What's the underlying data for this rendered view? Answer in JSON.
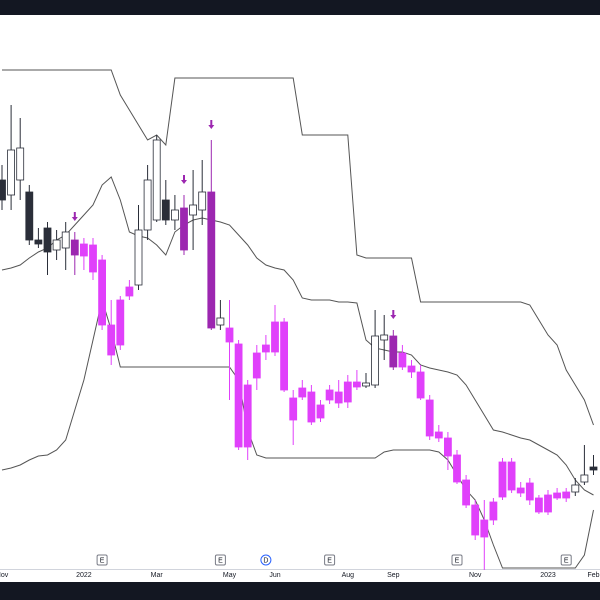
{
  "chart_data": {
    "type": "candlestick",
    "x": [
      "Nov",
      null,
      null,
      null,
      null,
      null,
      null,
      null,
      null,
      "2022",
      null,
      null,
      null,
      null,
      null,
      null,
      null,
      "Mar",
      null,
      null,
      null,
      null,
      null,
      null,
      null,
      "May",
      null,
      null,
      null,
      null,
      "Jun",
      null,
      null,
      null,
      null,
      null,
      null,
      null,
      "Aug",
      null,
      null,
      null,
      null,
      "Sep",
      null,
      null,
      null,
      null,
      null,
      null,
      null,
      null,
      "Nov",
      null,
      null,
      null,
      null,
      null,
      null,
      null,
      "2023",
      null,
      null,
      null,
      null,
      "Feb"
    ],
    "open": [
      390,
      375,
      390,
      378,
      330,
      342,
      320,
      322,
      330,
      326,
      325,
      310,
      245,
      270,
      283,
      285,
      340,
      350,
      370,
      350,
      362,
      355,
      360,
      378,
      245,
      242,
      226,
      185,
      217,
      225,
      248,
      248,
      172,
      182,
      178,
      165,
      180,
      178,
      188,
      188,
      184,
      185,
      230,
      234,
      217,
      204,
      198,
      170,
      138,
      132,
      115,
      90,
      65,
      50,
      68,
      108,
      108,
      82,
      87,
      72,
      75,
      77,
      78,
      78,
      88,
      103
    ],
    "high": [
      405,
      465,
      452,
      385,
      342,
      348,
      340,
      348,
      338,
      332,
      332,
      315,
      270,
      274,
      290,
      365,
      405,
      435,
      390,
      375,
      375,
      400,
      410,
      430,
      270,
      270,
      230,
      190,
      225,
      235,
      265,
      252,
      180,
      190,
      185,
      170,
      185,
      190,
      195,
      200,
      197,
      260,
      255,
      240,
      225,
      210,
      205,
      175,
      145,
      138,
      120,
      95,
      70,
      70,
      72,
      112,
      112,
      88,
      92,
      75,
      80,
      82,
      82,
      92,
      125,
      115
    ],
    "low": [
      360,
      360,
      370,
      325,
      322,
      295,
      310,
      300,
      295,
      300,
      290,
      240,
      205,
      220,
      270,
      280,
      330,
      348,
      345,
      340,
      315,
      320,
      345,
      240,
      240,
      170,
      120,
      110,
      180,
      210,
      214,
      178,
      125,
      170,
      145,
      148,
      166,
      162,
      162,
      180,
      182,
      182,
      210,
      200,
      200,
      192,
      170,
      130,
      128,
      100,
      86,
      62,
      30,
      0,
      45,
      70,
      77,
      73,
      65,
      56,
      55,
      70,
      68,
      74,
      85,
      95
    ],
    "close": [
      370,
      420,
      422,
      330,
      326,
      318,
      330,
      338,
      315,
      314,
      298,
      245,
      215,
      225,
      274,
      340,
      390,
      430,
      350,
      360,
      320,
      365,
      378,
      242,
      252,
      228,
      123,
      123,
      192,
      218,
      218,
      180,
      150,
      173,
      148,
      152,
      170,
      167,
      168,
      183,
      187,
      234,
      235,
      203,
      203,
      198,
      172,
      134,
      132,
      114,
      88,
      65,
      35,
      33,
      50,
      73,
      80,
      77,
      70,
      58,
      58,
      72,
      72,
      85,
      95,
      100
    ],
    "colors": [
      "#2a2e39",
      "#ffffff",
      "#ffffff",
      "#2a2e39",
      "#2a2e39",
      "#2a2e39",
      "#ffffff",
      "#ffffff",
      "#9c27b0",
      "#e040fb",
      "#e040fb",
      "#e040fb",
      "#e040fb",
      "#e040fb",
      "#e040fb",
      "#ffffff",
      "#ffffff",
      "#ffffff",
      "#2a2e39",
      "#ffffff",
      "#9c27b0",
      "#ffffff",
      "#ffffff",
      "#9c27b0",
      "#ffffff",
      "#e040fb",
      "#e040fb",
      "#e040fb",
      "#e040fb",
      "#e040fb",
      "#e040fb",
      "#e040fb",
      "#e040fb",
      "#e040fb",
      "#e040fb",
      "#e040fb",
      "#e040fb",
      "#e040fb",
      "#e040fb",
      "#e040fb",
      "#ffffff",
      "#ffffff",
      "#ffffff",
      "#9c27b0",
      "#e040fb",
      "#e040fb",
      "#e040fb",
      "#e040fb",
      "#e040fb",
      "#e040fb",
      "#e040fb",
      "#e040fb",
      "#e040fb",
      "#e040fb",
      "#e040fb",
      "#e040fb",
      "#e040fb",
      "#e040fb",
      "#e040fb",
      "#e040fb",
      "#e040fb",
      "#e040fb",
      "#e040fb",
      "#ffffff",
      "#ffffff",
      "#2a2e39"
    ],
    "lines": [
      {
        "color": "#555555",
        "values": [
          500,
          500,
          500,
          500,
          500,
          500,
          500,
          500,
          500,
          500,
          500,
          500,
          500,
          475,
          460,
          445,
          430,
          435,
          425,
          492,
          492,
          492,
          492,
          492,
          492,
          492,
          492,
          492,
          492,
          492,
          492,
          492,
          492,
          435,
          435,
          435,
          435,
          435,
          435,
          315,
          312,
          312,
          312,
          312,
          312,
          312,
          268,
          268,
          268,
          268,
          268,
          268,
          268,
          268,
          268,
          268,
          268,
          268,
          265,
          250,
          235,
          225,
          200,
          185,
          170,
          145
        ]
      },
      {
        "color": "#555555",
        "values": [
          300,
          302,
          305,
          312,
          318,
          322,
          330,
          335,
          345,
          355,
          365,
          385,
          393,
          370,
          338,
          334,
          332,
          325,
          315,
          338,
          345,
          350,
          352,
          350,
          348,
          345,
          335,
          325,
          312,
          305,
          302,
          300,
          290,
          272,
          270,
          270,
          270,
          268,
          268,
          267,
          230,
          222,
          220,
          218,
          218,
          215,
          205,
          202,
          200,
          198,
          195,
          185,
          170,
          155,
          140,
          138,
          135,
          132,
          130,
          125,
          120,
          115,
          105,
          90,
          80,
          75
        ]
      },
      {
        "color": "#555555",
        "values": [
          100,
          102,
          105,
          110,
          114,
          115,
          120,
          130,
          160,
          190,
          230,
          270,
          240,
          203,
          203,
          203,
          203,
          203,
          203,
          203,
          203,
          203,
          203,
          203,
          203,
          203,
          190,
          140,
          115,
          112,
          112,
          112,
          112,
          112,
          112,
          112,
          112,
          112,
          112,
          112,
          112,
          112,
          118,
          120,
          120,
          120,
          120,
          120,
          118,
          110,
          95,
          80,
          70,
          50,
          25,
          2,
          2,
          2,
          2,
          2,
          2,
          2,
          2,
          2,
          15,
          60
        ]
      }
    ],
    "events": [
      null,
      null,
      null,
      null,
      null,
      null,
      null,
      null,
      null,
      null,
      null,
      "E",
      null,
      null,
      null,
      null,
      null,
      null,
      null,
      null,
      null,
      null,
      null,
      null,
      "E",
      null,
      null,
      null,
      null,
      "D",
      null,
      null,
      null,
      null,
      null,
      null,
      "E",
      null,
      null,
      null,
      null,
      null,
      null,
      null,
      null,
      null,
      null,
      null,
      null,
      null,
      "E",
      null,
      null,
      null,
      null,
      null,
      null,
      null,
      null,
      null,
      null,
      null,
      "E",
      null,
      null,
      null
    ],
    "signal_candles": [
      8,
      20,
      23,
      43
    ],
    "signal_color": "#9c27b0",
    "ylim": [
      0,
      555
    ]
  }
}
